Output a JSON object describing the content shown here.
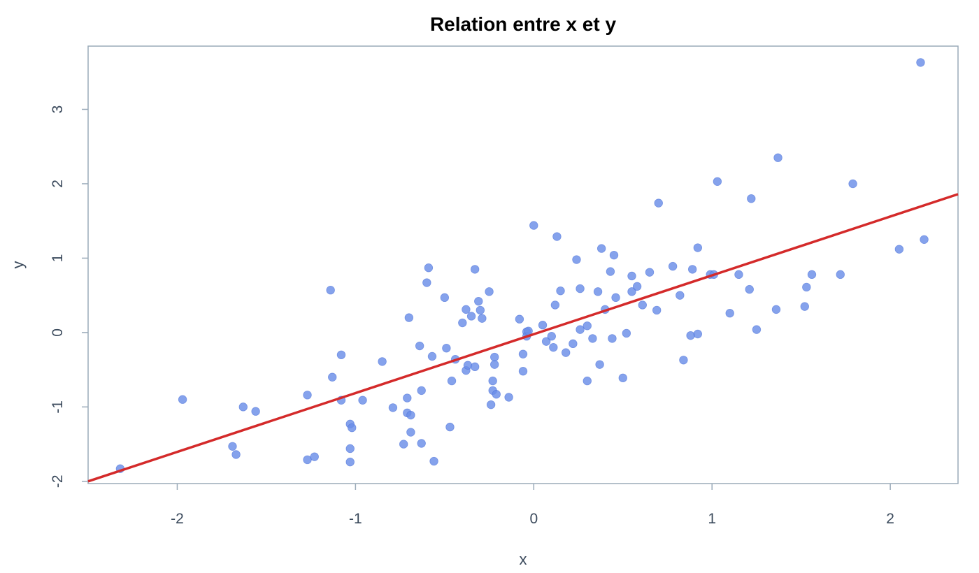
{
  "chart_data": {
    "type": "scatter",
    "title": "Relation entre x et y",
    "xlabel": "x",
    "ylabel": "y",
    "xlim": [
      -2.5,
      2.38
    ],
    "ylim": [
      -2.03,
      3.85
    ],
    "xticks": [
      -2,
      -1,
      0,
      1,
      2
    ],
    "yticks": [
      -2,
      -1,
      0,
      1,
      2,
      3
    ],
    "xtick_labels": [
      "-2",
      "-1",
      "0",
      "1",
      "2"
    ],
    "ytick_labels": [
      "-2",
      "-1",
      "0",
      "1",
      "2",
      "3"
    ],
    "grid": false,
    "legend": "none",
    "series": [
      {
        "kind": "points",
        "color": "#6a8de8",
        "points": [
          [
            -2.32,
            -1.83
          ],
          [
            -1.97,
            -0.9
          ],
          [
            -1.69,
            -1.53
          ],
          [
            -1.67,
            -1.64
          ],
          [
            -1.63,
            -1.0
          ],
          [
            -1.56,
            -1.06
          ],
          [
            -1.27,
            -0.84
          ],
          [
            -1.27,
            -1.71
          ],
          [
            -1.23,
            -1.67
          ],
          [
            -1.14,
            0.57
          ],
          [
            -1.13,
            -0.6
          ],
          [
            -1.08,
            -0.3
          ],
          [
            -1.08,
            -0.91
          ],
          [
            -1.03,
            -1.23
          ],
          [
            -1.02,
            -1.28
          ],
          [
            -1.03,
            -1.56
          ],
          [
            -1.03,
            -1.74
          ],
          [
            -0.96,
            -0.91
          ],
          [
            -0.85,
            -0.39
          ],
          [
            -0.79,
            -1.01
          ],
          [
            -0.73,
            -1.5
          ],
          [
            -0.71,
            -0.88
          ],
          [
            -0.71,
            -1.08
          ],
          [
            -0.7,
            0.2
          ],
          [
            -0.69,
            -1.11
          ],
          [
            -0.69,
            -1.34
          ],
          [
            -0.64,
            -0.18
          ],
          [
            -0.63,
            -0.78
          ],
          [
            -0.63,
            -1.49
          ],
          [
            -0.59,
            0.87
          ],
          [
            -0.6,
            0.67
          ],
          [
            -0.57,
            -0.32
          ],
          [
            -0.56,
            -1.73
          ],
          [
            -0.5,
            0.47
          ],
          [
            -0.49,
            -0.21
          ],
          [
            -0.47,
            -1.27
          ],
          [
            -0.46,
            -0.65
          ],
          [
            -0.44,
            -0.36
          ],
          [
            -0.4,
            0.13
          ],
          [
            -0.38,
            0.31
          ],
          [
            -0.38,
            -0.51
          ],
          [
            -0.37,
            -0.44
          ],
          [
            -0.35,
            0.22
          ],
          [
            -0.33,
            -0.46
          ],
          [
            -0.33,
            0.85
          ],
          [
            -0.31,
            0.42
          ],
          [
            -0.3,
            0.3
          ],
          [
            -0.29,
            0.19
          ],
          [
            -0.25,
            0.55
          ],
          [
            -0.24,
            -0.97
          ],
          [
            -0.23,
            -0.78
          ],
          [
            -0.23,
            -0.65
          ],
          [
            -0.22,
            -0.33
          ],
          [
            -0.22,
            -0.43
          ],
          [
            -0.21,
            -0.83
          ],
          [
            -0.14,
            -0.87
          ],
          [
            -0.08,
            0.18
          ],
          [
            -0.06,
            -0.29
          ],
          [
            -0.06,
            -0.52
          ],
          [
            -0.04,
            0.01
          ],
          [
            -0.04,
            -0.05
          ],
          [
            -0.03,
            0.02
          ],
          [
            0.0,
            1.44
          ],
          [
            0.05,
            0.1
          ],
          [
            0.07,
            -0.12
          ],
          [
            0.1,
            -0.05
          ],
          [
            0.11,
            -0.2
          ],
          [
            0.12,
            0.37
          ],
          [
            0.13,
            1.29
          ],
          [
            0.15,
            0.56
          ],
          [
            0.18,
            -0.27
          ],
          [
            0.22,
            -0.15
          ],
          [
            0.24,
            0.98
          ],
          [
            0.26,
            0.04
          ],
          [
            0.26,
            0.59
          ],
          [
            0.3,
            0.09
          ],
          [
            0.3,
            -0.65
          ],
          [
            0.33,
            -0.08
          ],
          [
            0.36,
            0.55
          ],
          [
            0.37,
            -0.43
          ],
          [
            0.38,
            1.13
          ],
          [
            0.4,
            0.31
          ],
          [
            0.43,
            0.82
          ],
          [
            0.44,
            -0.08
          ],
          [
            0.45,
            1.04
          ],
          [
            0.46,
            0.47
          ],
          [
            0.5,
            -0.61
          ],
          [
            0.52,
            -0.01
          ],
          [
            0.55,
            0.55
          ],
          [
            0.55,
            0.76
          ],
          [
            0.58,
            0.62
          ],
          [
            0.61,
            0.37
          ],
          [
            0.65,
            0.81
          ],
          [
            0.69,
            0.3
          ],
          [
            0.7,
            1.74
          ],
          [
            0.78,
            0.89
          ],
          [
            0.82,
            0.5
          ],
          [
            0.84,
            -0.37
          ],
          [
            0.88,
            -0.04
          ],
          [
            0.89,
            0.85
          ],
          [
            0.92,
            -0.02
          ],
          [
            0.92,
            1.14
          ],
          [
            0.99,
            0.78
          ],
          [
            1.01,
            0.78
          ],
          [
            1.03,
            2.03
          ],
          [
            1.1,
            0.26
          ],
          [
            1.15,
            0.78
          ],
          [
            1.21,
            0.58
          ],
          [
            1.22,
            1.8
          ],
          [
            1.25,
            0.04
          ],
          [
            1.36,
            0.31
          ],
          [
            1.37,
            2.35
          ],
          [
            1.52,
            0.35
          ],
          [
            1.53,
            0.61
          ],
          [
            1.56,
            0.78
          ],
          [
            1.72,
            0.78
          ],
          [
            1.79,
            2.0
          ],
          [
            2.05,
            1.12
          ],
          [
            2.17,
            3.63
          ],
          [
            2.19,
            1.25
          ]
        ]
      },
      {
        "kind": "line",
        "color": "#d42a2a",
        "x": [
          -2.5,
          2.38
        ],
        "y": [
          -2.0,
          1.86
        ]
      }
    ]
  }
}
